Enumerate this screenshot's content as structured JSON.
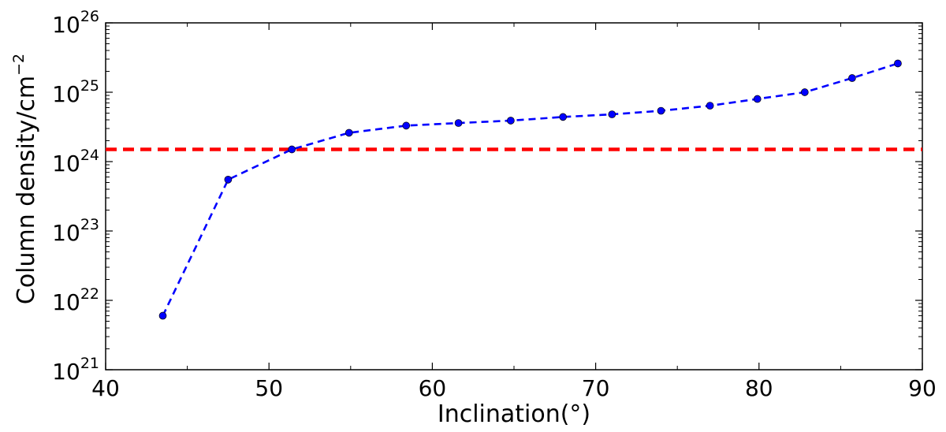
{
  "chart_data": {
    "type": "line",
    "xlabel": "Inclination(°)",
    "ylabel": "Column density/cm",
    "ylabel_exponent": "−2",
    "xlim": [
      40,
      90
    ],
    "ylim": [
      1e+21,
      1e+26
    ],
    "yscale": "log",
    "grid": false,
    "x_ticks": [
      40,
      50,
      60,
      70,
      80,
      90
    ],
    "y_ticks": [
      {
        "base": "10",
        "exp": "21",
        "value": 1e+21
      },
      {
        "base": "10",
        "exp": "22",
        "value": 1e+22
      },
      {
        "base": "10",
        "exp": "23",
        "value": 1e+23
      },
      {
        "base": "10",
        "exp": "24",
        "value": 1e+24
      },
      {
        "base": "10",
        "exp": "25",
        "value": 1e+25
      },
      {
        "base": "10",
        "exp": "26",
        "value": 1e+26
      }
    ],
    "series": [
      {
        "color": "#0000ff",
        "line_style": "dashed",
        "marker": "circle",
        "x": [
          43.5,
          47.5,
          51.4,
          54.9,
          58.4,
          61.6,
          64.8,
          68.0,
          71.0,
          74.0,
          77.0,
          79.9,
          82.8,
          85.7,
          88.5
        ],
        "y": [
          6e+21,
          5.5e+23,
          1.5e+24,
          2.6e+24,
          3.3e+24,
          3.6e+24,
          3.9e+24,
          4.4e+24,
          4.8e+24,
          5.4e+24,
          6.4e+24,
          8e+24,
          1e+25,
          1.6e+25,
          2.6e+25
        ]
      }
    ],
    "hlines": [
      {
        "y": 1.5e+24,
        "color": "#ff0000",
        "line_style": "dashed"
      }
    ]
  }
}
